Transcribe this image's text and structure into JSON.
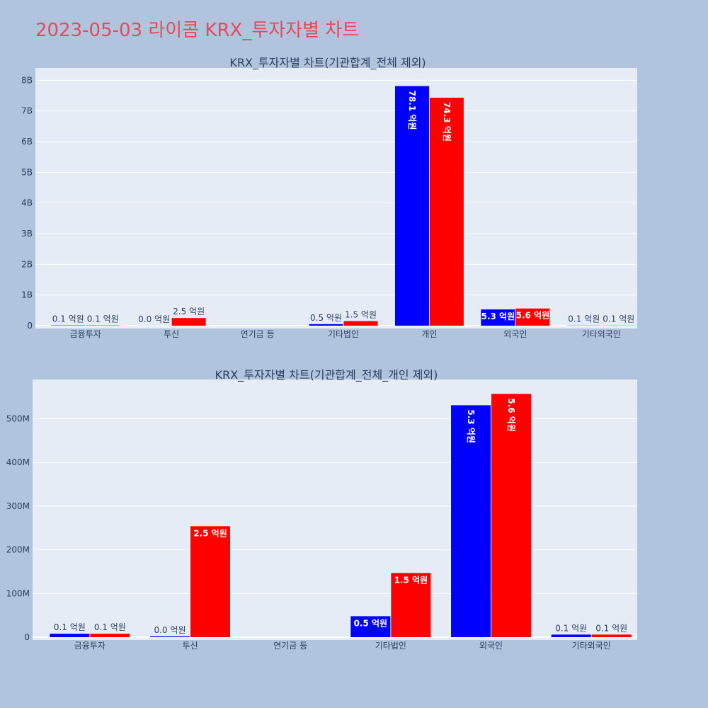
{
  "page_title": "2023-05-03 라이콤 KRX_투자자별 차트",
  "colors": {
    "series_a": "#0000ff",
    "series_b": "#ff0000",
    "plot_bg": "#e5ecf6",
    "page_bg": "#b0c4de",
    "title": "#e8495a"
  },
  "chart_data": [
    {
      "type": "bar",
      "title": "KRX_투자자별 차트(기관합계_전체 제외)",
      "categories": [
        "금융투자",
        "투신",
        "연기금 등",
        "기타법인",
        "개인",
        "외국인",
        "기타외국인"
      ],
      "y_tick_labels": [
        "0",
        "1B",
        "2B",
        "3B",
        "4B",
        "5B",
        "6B",
        "7B",
        "8B"
      ],
      "y_tick_values": [
        0,
        1000000000,
        2000000000,
        3000000000,
        4000000000,
        5000000000,
        6000000000,
        7000000000,
        8000000000
      ],
      "ylim": [
        0,
        8400000000
      ],
      "grid": true,
      "series": [
        {
          "color": "#0000ff",
          "values": [
            10000000,
            2000000,
            0,
            50000000,
            7810000000,
            530000000,
            6000000
          ],
          "labels": [
            "0.1 억원",
            "0.0 억원",
            "",
            "0.5 억원",
            "78.1 억원",
            "5.3 억원",
            "0.1 억원"
          ]
        },
        {
          "color": "#ff0000",
          "values": [
            10000000,
            250000000,
            0,
            150000000,
            7430000000,
            560000000,
            6000000
          ],
          "labels": [
            "0.1 억원",
            "2.5 억원",
            "",
            "1.5 억원",
            "74.3 억원",
            "5.6 억원",
            "0.1 억원"
          ]
        }
      ]
    },
    {
      "type": "bar",
      "title": "KRX_투자자별 차트(기관합계_전체_개인 제외)",
      "categories": [
        "금융투자",
        "투신",
        "연기금 등",
        "기타법인",
        "외국인",
        "기타외국인"
      ],
      "y_tick_labels": [
        "0",
        "100M",
        "200M",
        "300M",
        "400M",
        "500M"
      ],
      "y_tick_values": [
        0,
        100000000,
        200000000,
        300000000,
        400000000,
        500000000
      ],
      "ylim": [
        0,
        590000000
      ],
      "grid": true,
      "series": [
        {
          "color": "#0000ff",
          "values": [
            8000000,
            2000000,
            0,
            48000000,
            531000000,
            6000000
          ],
          "labels": [
            "0.1 억원",
            "0.0 억원",
            "",
            "0.5 억원",
            "5.3 억원",
            "0.1 억원"
          ]
        },
        {
          "color": "#ff0000",
          "values": [
            8000000,
            254000000,
            0,
            147000000,
            557000000,
            6000000
          ],
          "labels": [
            "0.1 억원",
            "2.5 억원",
            "",
            "1.5 억원",
            "5.6 억원",
            "0.1 억원"
          ]
        }
      ]
    }
  ]
}
